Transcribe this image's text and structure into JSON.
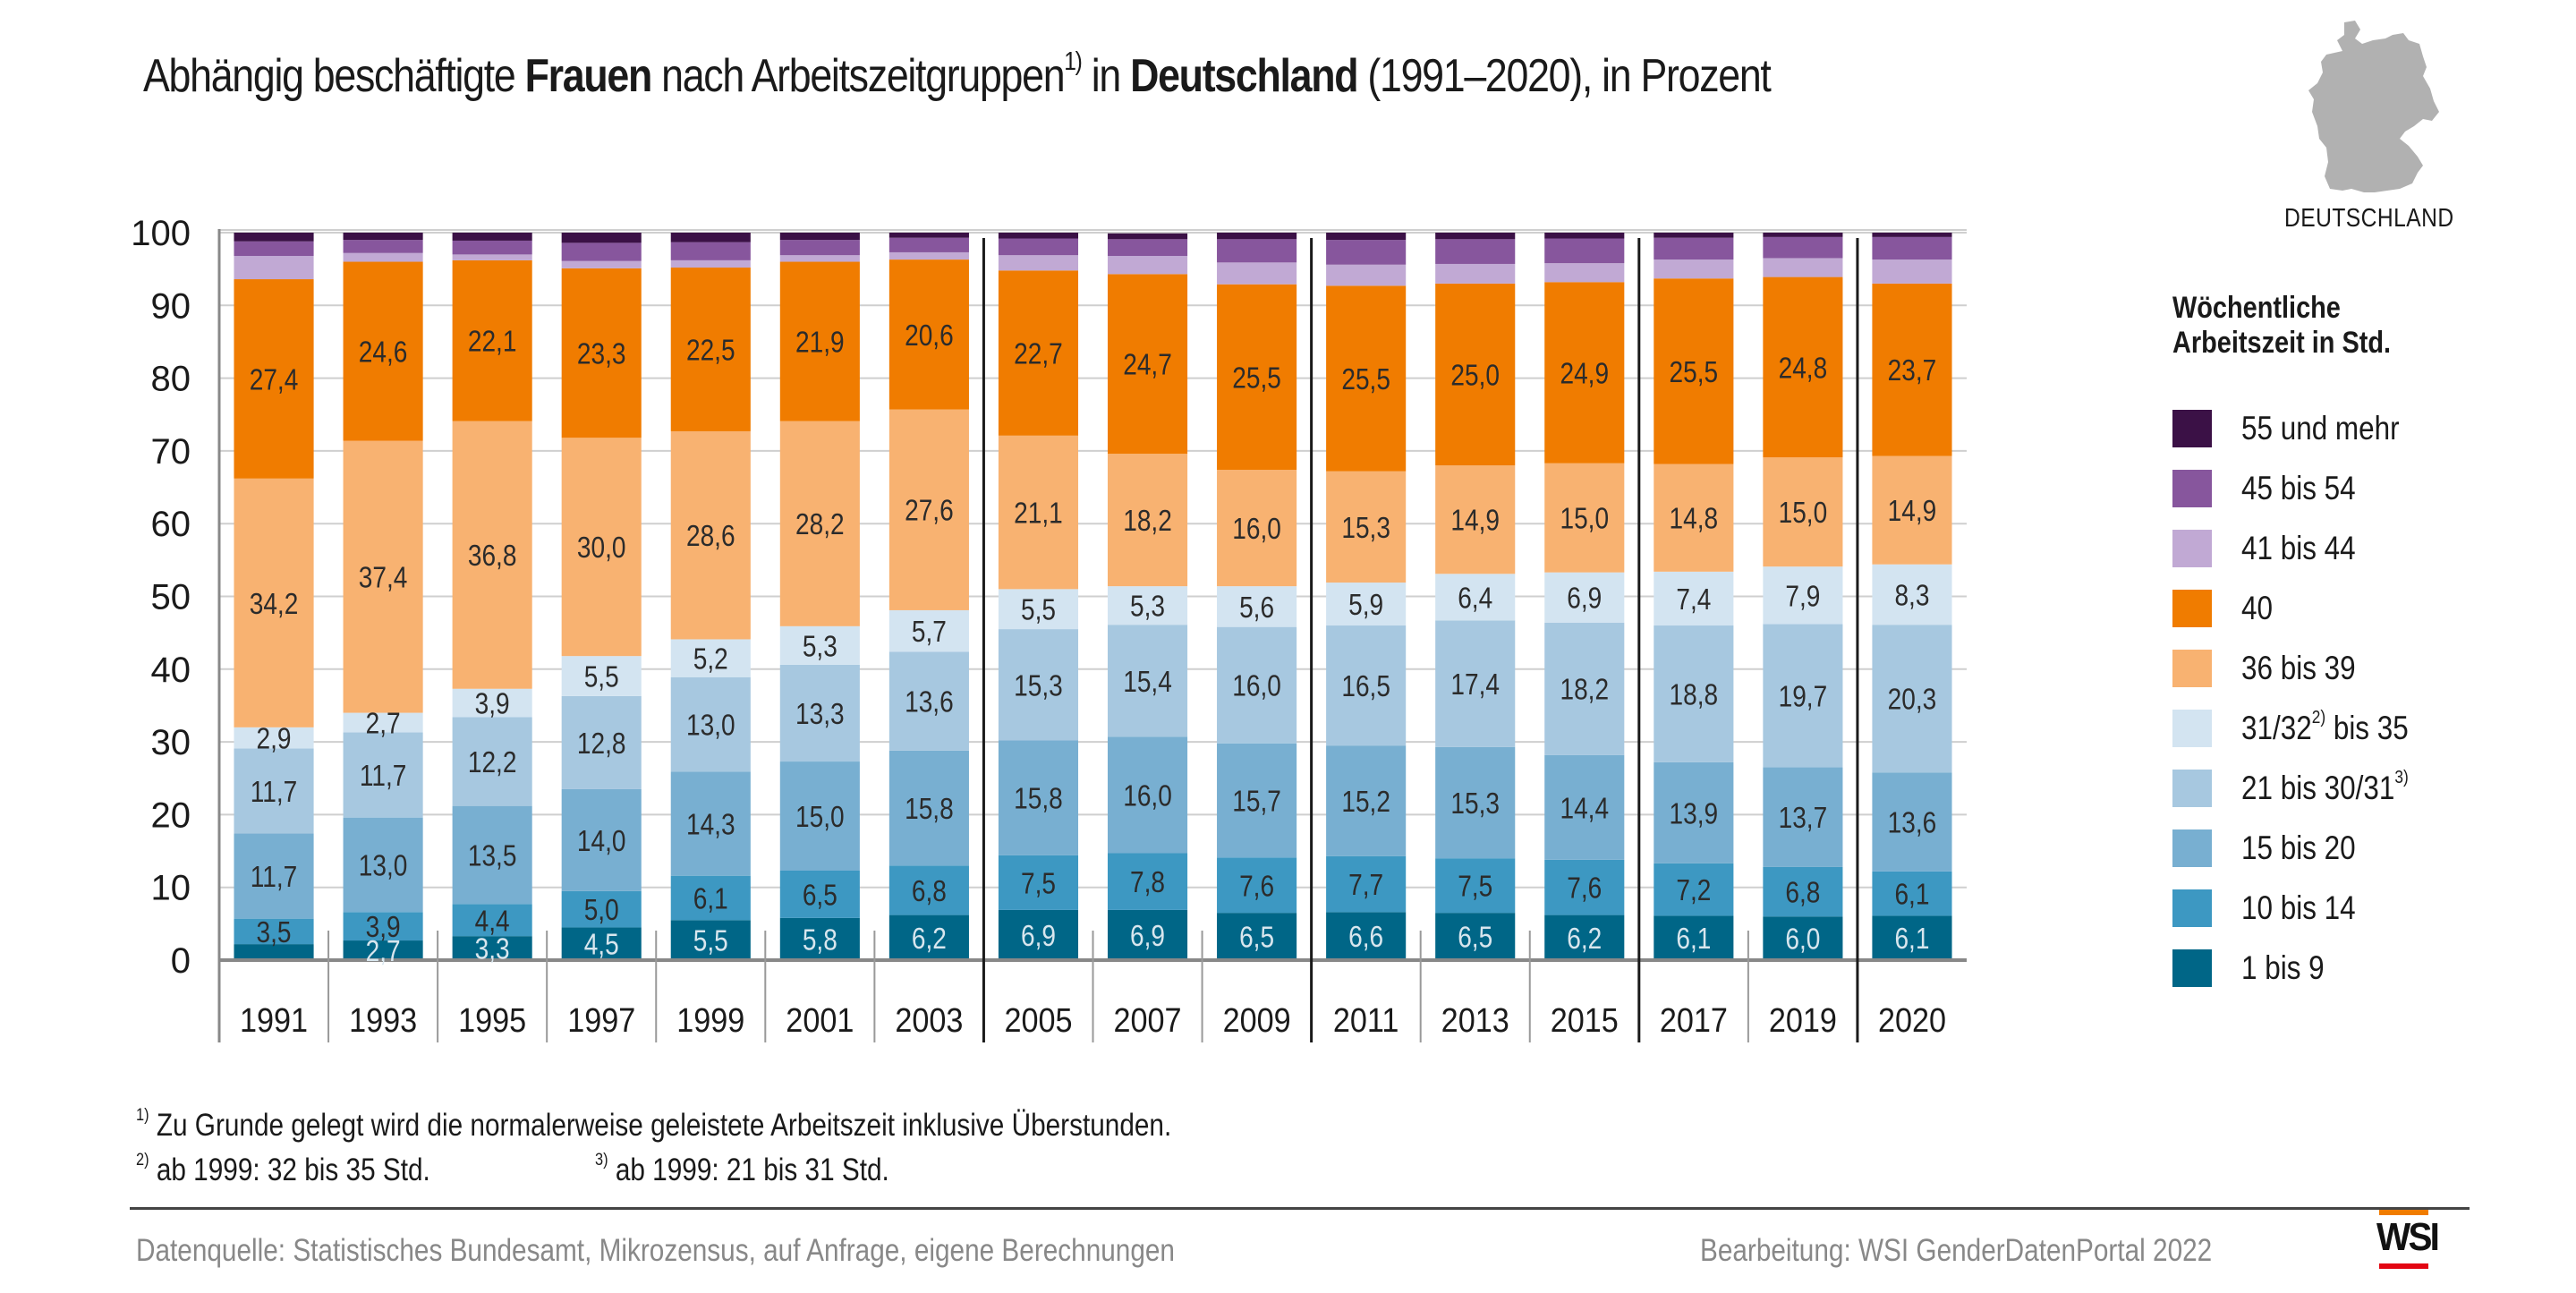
{
  "title": {
    "part1": "Abhängig beschäftigte ",
    "bold1": "Frauen",
    "part2": " nach Arbeitszeitgruppen",
    "sup1": "1)",
    "part3": " in ",
    "bold2": "Deutschland",
    "part4": " (1991–2020), in Prozent"
  },
  "map": {
    "label": "DEUTSCHLAND",
    "fill": "#b1b1b1"
  },
  "legend": {
    "title_line1": "Wöchentliche",
    "title_line2": "Arbeitszeit in Std.",
    "items": [
      {
        "label": "55 und mehr",
        "sup": "",
        "color": "#3b1146"
      },
      {
        "label": "45 bis 54",
        "sup": "",
        "color": "#87569d"
      },
      {
        "label": "41 bis 44",
        "sup": "",
        "color": "#c1a9d4"
      },
      {
        "label": "40",
        "sup": "",
        "color": "#f07c00"
      },
      {
        "label": "36 bis 39",
        "sup": "",
        "color": "#f8b271"
      },
      {
        "label": "31/32",
        "sup": "2)",
        "label_after": " bis 35",
        "color": "#d3e4f1"
      },
      {
        "label": "21 bis 30/31",
        "sup": "3)",
        "color": "#a7c8e0"
      },
      {
        "label": "15 bis 20",
        "sup": "",
        "color": "#78afd1"
      },
      {
        "label": "10 bis 14",
        "sup": "",
        "color": "#3d98c2"
      },
      {
        "label": "1 bis 9",
        "sup": "",
        "color": "#006687"
      }
    ]
  },
  "footnotes": {
    "fn1_mark": "1)",
    "fn1": " Zu Grunde gelegt wird die normalerweise geleistete Arbeitszeit inklusive Überstunden.",
    "fn2_mark": "2)",
    "fn2": " ab 1999: 32 bis 35 Std.",
    "fn3_mark": "3)",
    "fn3": " ab 1999: 21 bis 31 Std."
  },
  "footer": {
    "source": "Datenquelle: Statistisches Bundesamt, Mikrozensus, auf Anfrage, eigene Berechnungen",
    "credit": "Bearbeitung: WSI GenderDatenPortal 2022",
    "logo": "WSI"
  },
  "chart_data": {
    "type": "bar",
    "stacked": true,
    "title": "Abhängig beschäftigte Frauen nach Arbeitszeitgruppen in Deutschland (1991–2020), in Prozent",
    "xlabel": "",
    "ylabel": "",
    "ylim": [
      0,
      100
    ],
    "yticks": [
      0,
      10,
      20,
      30,
      40,
      50,
      60,
      70,
      80,
      90,
      100
    ],
    "grid": true,
    "legend_position": "right",
    "legend_title": "Wöchentliche Arbeitszeit in Std.",
    "categories": [
      "1991",
      "1993",
      "1995",
      "1997",
      "1999",
      "2001",
      "2003",
      "2005",
      "2007",
      "2009",
      "2011",
      "2013",
      "2015",
      "2017",
      "2019",
      "2020"
    ],
    "group_separators_after": [
      "2003",
      "2009",
      "2015",
      "2019"
    ],
    "series": [
      {
        "name": "1 bis 9",
        "color": "#006687",
        "label_color": "#d8e6ee",
        "values": [
          2.2,
          2.7,
          3.3,
          4.5,
          5.5,
          5.8,
          6.2,
          6.9,
          6.9,
          6.5,
          6.6,
          6.5,
          6.2,
          6.1,
          6.0,
          6.1
        ],
        "labeled": [
          false,
          true,
          true,
          true,
          true,
          true,
          true,
          true,
          true,
          true,
          true,
          true,
          true,
          true,
          true,
          true
        ]
      },
      {
        "name": "10 bis 14",
        "color": "#3d98c2",
        "label_color": "#2b2b2b",
        "values": [
          3.5,
          3.9,
          4.4,
          5.0,
          6.1,
          6.5,
          6.8,
          7.5,
          7.8,
          7.6,
          7.7,
          7.5,
          7.6,
          7.2,
          6.8,
          6.1
        ]
      },
      {
        "name": "15 bis 20",
        "color": "#78afd1",
        "label_color": "#2b2b2b",
        "values": [
          11.7,
          13.0,
          13.5,
          14.0,
          14.3,
          15.0,
          15.8,
          15.8,
          16.0,
          15.7,
          15.2,
          15.3,
          14.4,
          13.9,
          13.7,
          13.6
        ]
      },
      {
        "name": "21 bis 30/31",
        "color": "#a7c8e0",
        "label_color": "#2b2b2b",
        "values": [
          11.7,
          11.7,
          12.2,
          12.8,
          13.0,
          13.3,
          13.6,
          15.3,
          15.4,
          16.0,
          16.5,
          17.4,
          18.2,
          18.8,
          19.7,
          20.3
        ]
      },
      {
        "name": "31/32 bis 35",
        "color": "#d3e4f1",
        "label_color": "#2b2b2b",
        "values": [
          2.9,
          2.7,
          3.9,
          5.5,
          5.2,
          5.3,
          5.7,
          5.5,
          5.3,
          5.6,
          5.9,
          6.4,
          6.9,
          7.4,
          7.9,
          8.3
        ]
      },
      {
        "name": "36 bis 39",
        "color": "#f8b271",
        "label_color": "#2b2b2b",
        "values": [
          34.2,
          37.4,
          36.8,
          30.0,
          28.6,
          28.2,
          27.6,
          21.1,
          18.2,
          16.0,
          15.3,
          14.9,
          15.0,
          14.8,
          15.0,
          14.9
        ]
      },
      {
        "name": "40",
        "color": "#f07c00",
        "label_color": "#2b2b2b",
        "values": [
          27.4,
          24.6,
          22.1,
          23.3,
          22.5,
          21.9,
          20.6,
          22.7,
          24.7,
          25.5,
          25.5,
          25.0,
          24.9,
          25.5,
          24.8,
          23.7
        ]
      },
      {
        "name": "41 bis 44",
        "color": "#c1a9d4",
        "unlabeled": true,
        "values": [
          3.2,
          1.2,
          0.8,
          1.0,
          1.0,
          0.9,
          1.0,
          2.1,
          2.5,
          3.0,
          2.9,
          2.7,
          2.6,
          2.6,
          2.6,
          3.3
        ]
      },
      {
        "name": "45 bis 54",
        "color": "#87569d",
        "unlabeled": true,
        "values": [
          2.0,
          1.8,
          1.9,
          2.5,
          2.5,
          2.1,
          2.0,
          2.3,
          2.3,
          3.2,
          3.4,
          3.4,
          3.4,
          3.0,
          2.9,
          3.1
        ]
      },
      {
        "name": "55 und mehr",
        "color": "#3b1146",
        "unlabeled": true,
        "values": [
          1.2,
          1.0,
          1.1,
          1.4,
          1.3,
          1.0,
          0.7,
          0.8,
          0.8,
          0.9,
          1.0,
          0.9,
          0.8,
          0.7,
          0.6,
          0.6
        ]
      }
    ]
  }
}
